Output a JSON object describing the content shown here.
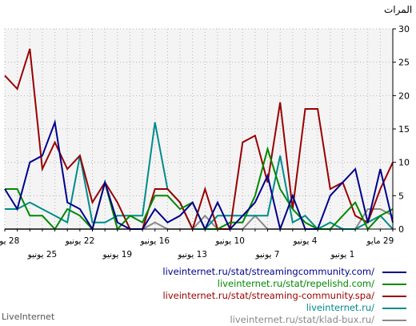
{
  "chart_data": {
    "type": "line",
    "ylabel": "المرات",
    "ylim": [
      0,
      30
    ],
    "yticks": [
      0,
      5,
      10,
      15,
      20,
      25,
      30
    ],
    "grid": true,
    "legend_position": "bottom-right",
    "x_days_ago": [
      31,
      30,
      29,
      28,
      27,
      26,
      25,
      24,
      23,
      22,
      21,
      20,
      19,
      18,
      17,
      16,
      15,
      14,
      13,
      12,
      11,
      10,
      9,
      8,
      7,
      6,
      5,
      4,
      3,
      2,
      1,
      0
    ],
    "x_tick_labels": [
      {
        "day": 31,
        "text": "28 يونيو",
        "row": 1
      },
      {
        "day": 28,
        "text": "25 يونيو",
        "row": 2
      },
      {
        "day": 25,
        "text": "22 يونيو",
        "row": 1
      },
      {
        "day": 22,
        "text": "19 يونيو",
        "row": 2
      },
      {
        "day": 19,
        "text": "16 يونيو",
        "row": 1
      },
      {
        "day": 16,
        "text": "13 يونيو",
        "row": 2
      },
      {
        "day": 13,
        "text": "10 يونيو",
        "row": 1
      },
      {
        "day": 10,
        "text": "7 يونيو",
        "row": 2
      },
      {
        "day": 7,
        "text": "4 يونيو",
        "row": 1
      },
      {
        "day": 4,
        "text": "1 يونيو",
        "row": 2
      },
      {
        "day": 1,
        "text": "29 مايو",
        "row": 1
      }
    ],
    "series": [
      {
        "name": "liveinternet.ru/stat/streamingcommunity.com/",
        "color": "#00008b",
        "values": [
          6,
          3,
          10,
          11,
          16,
          4,
          3,
          0,
          7,
          1,
          0,
          0,
          3,
          1,
          2,
          4,
          0,
          4,
          0,
          2,
          4,
          8,
          0,
          5,
          0,
          0,
          5,
          7,
          9,
          1,
          9,
          1
        ]
      },
      {
        "name": "liveinternet.ru/stat/repelishd.com/",
        "color": "#008800",
        "values": [
          6,
          6,
          2,
          2,
          0,
          3,
          2,
          0,
          7,
          0,
          2,
          1,
          5,
          5,
          3,
          4,
          0,
          0,
          1,
          1,
          5,
          12,
          6,
          3,
          1,
          0,
          0,
          2,
          4,
          0,
          2,
          3
        ]
      },
      {
        "name": "liveinternet.ru/stat/streaming-community.spa/",
        "color": "#990000",
        "values": [
          23,
          21,
          27,
          9,
          13,
          9,
          11,
          4,
          7,
          4,
          0,
          0,
          6,
          6,
          4,
          0,
          6,
          0,
          0,
          13,
          14,
          7,
          19,
          3,
          18,
          18,
          6,
          7,
          2,
          1,
          6,
          10
        ]
      },
      {
        "name": "liveinternet.ru/",
        "color": "#008b8b",
        "values": [
          3,
          3,
          4,
          3,
          2,
          1,
          11,
          1,
          1,
          2,
          2,
          2,
          16,
          6,
          4,
          0,
          0,
          2,
          2,
          2,
          2,
          2,
          11,
          1,
          2,
          0,
          1,
          0,
          0,
          1,
          2,
          0
        ]
      },
      {
        "name": "liveinternet.ru/stat/klad-bux.ru/",
        "color": "#888888",
        "values": [
          0,
          0,
          0,
          0,
          0,
          0,
          0,
          0,
          0,
          0,
          0,
          0,
          1,
          0,
          0,
          0,
          2,
          0,
          0,
          0,
          2,
          0,
          0,
          0,
          0,
          0,
          0,
          0,
          0,
          3,
          3,
          2
        ]
      }
    ]
  },
  "footer": {
    "label": "LiveInternet"
  }
}
